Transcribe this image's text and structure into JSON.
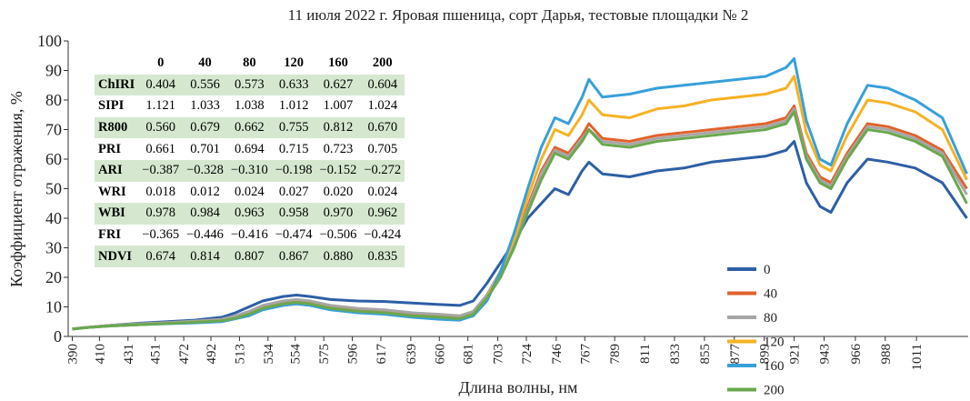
{
  "chart_data": {
    "type": "line",
    "title": "11 июля 2022 г. Яровая пшеница, сорт Дарья, тестовые площадки № 2",
    "x_label": "Длина волны, нм",
    "y_label": "Коэффициент отражения, %",
    "xlim": [
      387,
      1049
    ],
    "ylim": [
      0,
      100
    ],
    "xticks": [
      390,
      410,
      431,
      451,
      472,
      492,
      513,
      534,
      554,
      575,
      596,
      617,
      639,
      660,
      681,
      703,
      724,
      746,
      767,
      789,
      811,
      833,
      855,
      877,
      899,
      921,
      943,
      966,
      988,
      1011
    ],
    "yticks": [
      0,
      10,
      20,
      30,
      40,
      50,
      60,
      70,
      80,
      90,
      100
    ],
    "x": [
      390,
      400,
      420,
      440,
      460,
      480,
      500,
      510,
      520,
      530,
      545,
      555,
      565,
      580,
      600,
      620,
      640,
      660,
      675,
      685,
      695,
      705,
      715,
      725,
      735,
      745,
      755,
      765,
      770,
      780,
      800,
      820,
      840,
      860,
      880,
      900,
      915,
      921,
      930,
      940,
      948,
      960,
      975,
      990,
      1010,
      1030,
      1048
    ],
    "series": [
      {
        "name": "0",
        "color": "#2d5fa5",
        "values": [
          2.5,
          3,
          3.8,
          4.5,
          5,
          5.5,
          6.5,
          8,
          10,
          12,
          13.5,
          14,
          13.5,
          12.5,
          12,
          11.8,
          11.3,
          10.8,
          10.5,
          12,
          18,
          25,
          32,
          40,
          45,
          50,
          48,
          56,
          59,
          55,
          54,
          56,
          57,
          59,
          60,
          61,
          63,
          66,
          52,
          44,
          42,
          52,
          60,
          59,
          57,
          52,
          40
        ]
      },
      {
        "name": "40",
        "color": "#e2622e",
        "values": [
          2.5,
          3,
          3.8,
          4.2,
          4.6,
          5,
          5.5,
          6.5,
          8,
          10,
          11.5,
          12,
          11.5,
          10,
          9,
          8.5,
          7.5,
          7,
          6.5,
          8,
          14,
          22,
          32,
          44,
          56,
          64,
          62,
          68,
          72,
          67,
          66,
          68,
          69,
          70,
          71,
          72,
          74,
          78,
          62,
          54,
          52,
          62,
          72,
          71,
          68,
          63,
          50
        ]
      },
      {
        "name": "80",
        "color": "#a6a6a6",
        "values": [
          2.5,
          3,
          3.8,
          4.3,
          4.7,
          5.2,
          5.8,
          7,
          8.5,
          10.5,
          12,
          12.5,
          12,
          10.5,
          9.5,
          9,
          8,
          7.5,
          7,
          8.5,
          14,
          22,
          31,
          43,
          55,
          63,
          61,
          67,
          70,
          66,
          65,
          67,
          68,
          69,
          70,
          71,
          73,
          77,
          61,
          53,
          51,
          61,
          71,
          70,
          67,
          62,
          48
        ]
      },
      {
        "name": "120",
        "color": "#f5b224",
        "values": [
          2.5,
          3,
          3.6,
          4,
          4.4,
          4.8,
          5.3,
          6.2,
          7.5,
          9.5,
          11,
          11.5,
          11,
          9.5,
          8.5,
          8,
          7,
          6.5,
          6,
          7.5,
          13,
          22,
          33,
          47,
          60,
          70,
          68,
          75,
          80,
          75,
          74,
          77,
          78,
          80,
          81,
          82,
          84,
          88,
          69,
          58,
          56,
          68,
          80,
          79,
          76,
          70,
          53
        ]
      },
      {
        "name": "160",
        "color": "#37a0d9",
        "values": [
          2.5,
          3,
          3.6,
          4,
          4.3,
          4.6,
          5,
          6,
          7,
          9,
          10.5,
          11,
          10.5,
          9,
          8,
          7.5,
          6.5,
          5.8,
          5.5,
          7,
          12,
          22,
          35,
          50,
          64,
          74,
          72,
          81,
          87,
          81,
          82,
          84,
          85,
          86,
          87,
          88,
          91,
          94,
          73,
          60,
          58,
          72,
          85,
          84,
          80,
          74,
          55
        ]
      },
      {
        "name": "200",
        "color": "#6aa84f",
        "values": [
          2.5,
          3,
          3.6,
          4,
          4.4,
          4.8,
          5.3,
          6.2,
          7.5,
          9.5,
          11,
          11.5,
          11,
          9.5,
          8.5,
          8,
          7,
          6.5,
          6,
          7.5,
          13,
          20,
          30,
          42,
          53,
          62,
          60,
          66,
          70,
          65,
          64,
          66,
          67,
          68,
          69,
          70,
          72,
          76,
          60,
          52,
          50,
          60,
          70,
          69,
          66,
          61,
          45
        ]
      }
    ],
    "table": {
      "columns": [
        "0",
        "40",
        "80",
        "120",
        "160",
        "200"
      ],
      "rows": [
        [
          "ChIRI",
          "0.404",
          "0.556",
          "0.573",
          "0.633",
          "0.627",
          "0.604"
        ],
        [
          "SIPI",
          "1.121",
          "1.033",
          "1.038",
          "1.012",
          "1.007",
          "1.024"
        ],
        [
          "R800",
          "0.560",
          "0.679",
          "0.662",
          "0.755",
          "0.812",
          "0.670"
        ],
        [
          "PRI",
          "0.661",
          "0.701",
          "0.694",
          "0.715",
          "0.723",
          "0.705"
        ],
        [
          "ARI",
          "−0.387",
          "−0.328",
          "−0.310",
          "−0.198",
          "−0.152",
          "−0.272"
        ],
        [
          "WRI",
          "0.018",
          "0.012",
          "0.024",
          "0.027",
          "0.020",
          "0.024"
        ],
        [
          "WBI",
          "0.978",
          "0.984",
          "0.963",
          "0.958",
          "0.970",
          "0.962"
        ],
        [
          "FRI",
          "−0.365",
          "−0.446",
          "−0.416",
          "−0.474",
          "−0.506",
          "−0.424"
        ],
        [
          "NDVI",
          "0.674",
          "0.814",
          "0.807",
          "0.867",
          "0.880",
          "0.835"
        ]
      ]
    }
  }
}
